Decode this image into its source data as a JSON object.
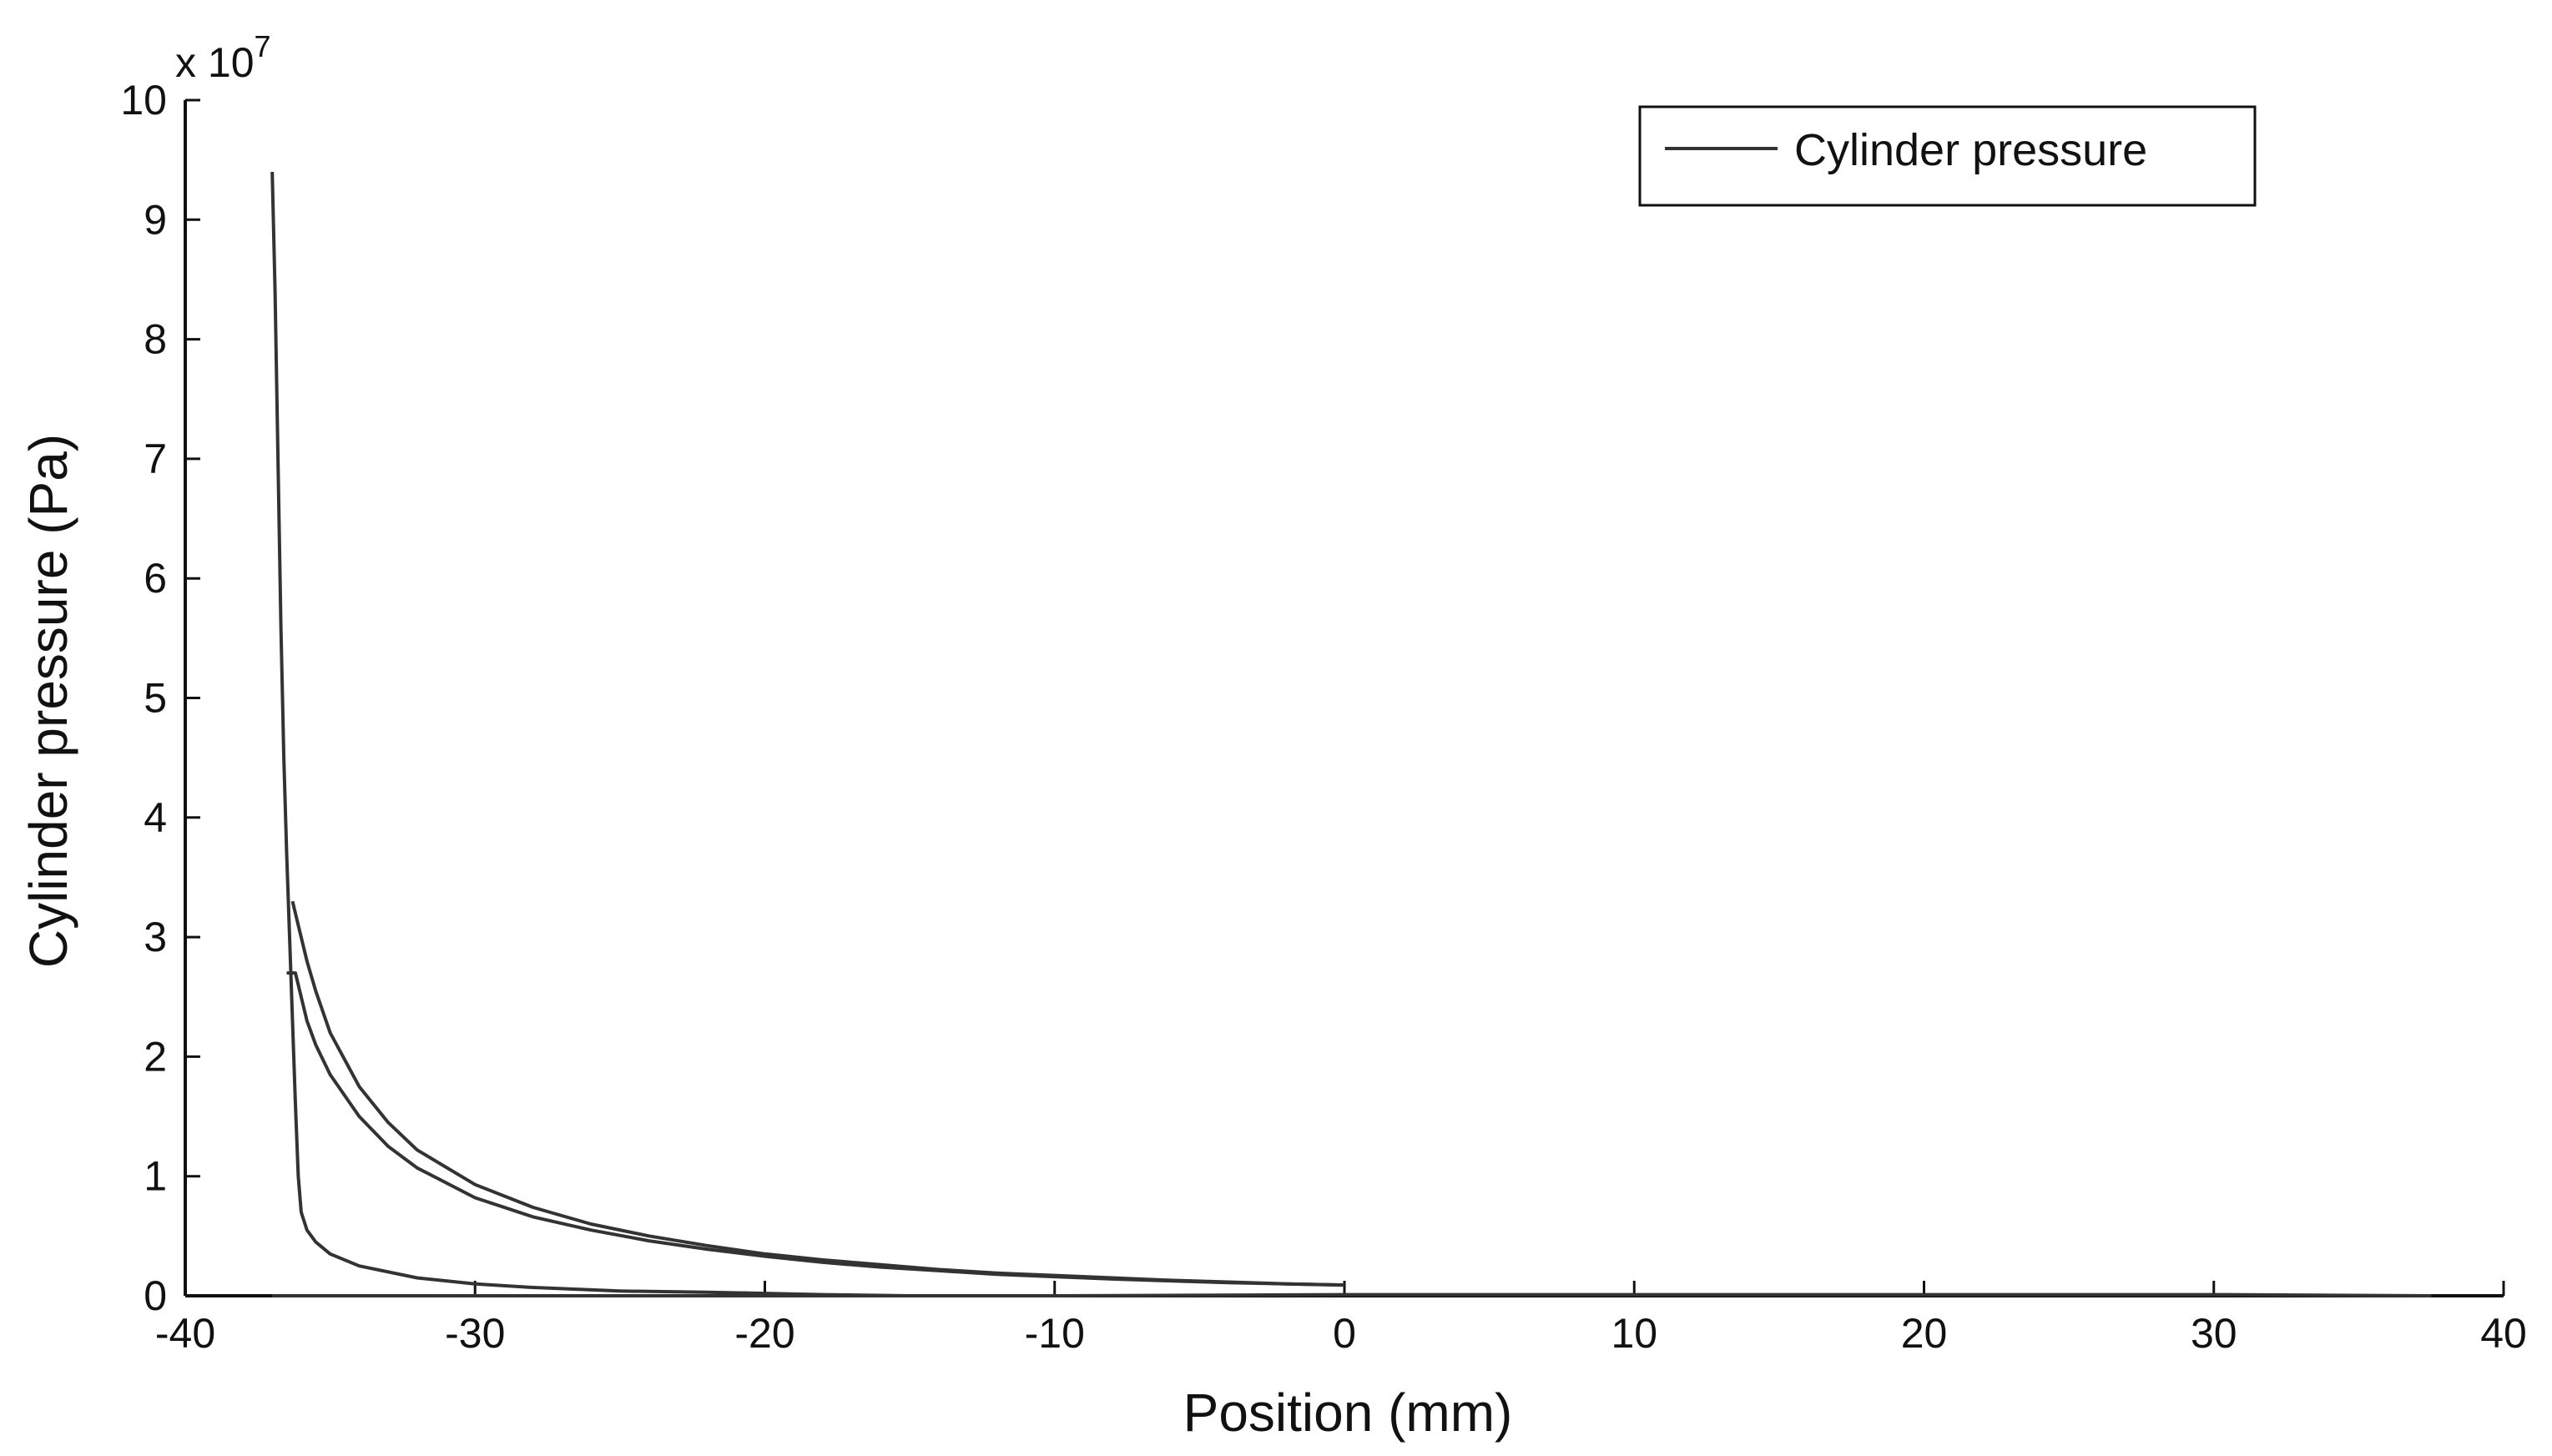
{
  "chart_data": {
    "type": "line",
    "title": "",
    "xlabel": "Position (mm)",
    "ylabel": "Cylinder pressure (Pa)",
    "y_exponent_label": "x 10",
    "y_exponent_power": "7",
    "y_multiplier": 10000000,
    "xlim": [
      -40,
      40
    ],
    "ylim": [
      0,
      10
    ],
    "xticks": [
      -40,
      -30,
      -20,
      -10,
      0,
      10,
      20,
      30,
      40
    ],
    "yticks": [
      0,
      1,
      2,
      3,
      4,
      5,
      6,
      7,
      8,
      9,
      10
    ],
    "grid": false,
    "legend_position": "top-right",
    "line_color": "#333333",
    "series": [
      {
        "name": "Cylinder pressure",
        "segments": [
          {
            "x": [
              -37.0,
              -36.9,
              -36.8,
              -36.7,
              -36.6,
              -36.5,
              -36.4,
              -36.3,
              -36.2,
              -36.1,
              -36.0,
              -35.8,
              -35.5,
              -35.0,
              -34.0,
              -32.0,
              -30.0,
              -28.0,
              -25.0,
              -22.0,
              -20.0,
              -18.0,
              -15.0
            ],
            "y": [
              9.4,
              8.4,
              7.0,
              5.6,
              4.5,
              3.7,
              3.0,
              2.3,
              1.6,
              1.0,
              0.7,
              0.55,
              0.45,
              0.35,
              0.25,
              0.15,
              0.1,
              0.07,
              0.04,
              0.03,
              0.02,
              0.01,
              0.0
            ]
          },
          {
            "x": [
              -36.5,
              -36.2,
              -36.0,
              -35.8,
              -35.5,
              -35.0,
              -34.0,
              -33.0,
              -32.0,
              -30.0,
              -28.0,
              -26.0,
              -24.0,
              -22.0,
              -20.0,
              -18.0,
              -16.0,
              -14.0,
              -12.0,
              -10.0,
              -8.0,
              -6.0,
              -4.0,
              -2.0,
              0.0
            ],
            "y": [
              2.7,
              2.7,
              2.5,
              2.3,
              2.1,
              1.85,
              1.5,
              1.25,
              1.07,
              0.82,
              0.66,
              0.55,
              0.46,
              0.39,
              0.33,
              0.28,
              0.24,
              0.21,
              0.18,
              0.16,
              0.14,
              0.125,
              0.11,
              0.1,
              0.09
            ]
          },
          {
            "x": [
              -36.3,
              -36.1,
              -35.8,
              -35.5,
              -35.0,
              -34.0,
              -33.0,
              -32.0,
              -30.0,
              -28.0,
              -26.0,
              -24.0,
              -22.0,
              -20.0,
              -18.0,
              -16.0,
              -14.0,
              -12.0,
              -10.0,
              -8.0,
              -6.0,
              -4.0,
              -2.0,
              0.0
            ],
            "y": [
              3.3,
              3.1,
              2.8,
              2.55,
              2.2,
              1.75,
              1.45,
              1.22,
              0.93,
              0.74,
              0.6,
              0.5,
              0.42,
              0.35,
              0.3,
              0.26,
              0.22,
              0.19,
              0.17,
              0.15,
              0.13,
              0.115,
              0.1,
              0.09
            ]
          },
          {
            "x": [
              -37.0,
              -30.0,
              -20.0,
              -10.0,
              0.0,
              10.0,
              20.0,
              30.0,
              37.5
            ],
            "y": [
              0.0,
              0.0,
              0.0,
              0.0,
              0.01,
              0.01,
              0.01,
              0.01,
              0.0
            ]
          }
        ]
      }
    ]
  }
}
